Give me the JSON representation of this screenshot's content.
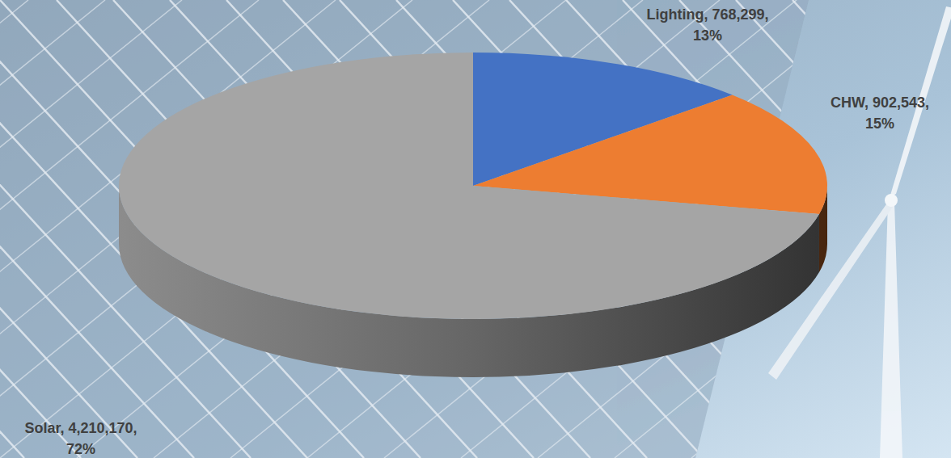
{
  "chart_data": {
    "type": "pie",
    "categories": [
      "Lighting",
      "CHW",
      "Solar"
    ],
    "values": [
      768299,
      902543,
      4210170
    ],
    "value_labels": [
      "768,299",
      "902,543",
      "4,210,170"
    ],
    "percentages": [
      13,
      15,
      72
    ],
    "percentage_labels": [
      "13%",
      "15%",
      "72%"
    ],
    "colors": [
      "#4472c4",
      "#ed7d31",
      "#a5a5a5"
    ],
    "data_labels": true
  }
}
